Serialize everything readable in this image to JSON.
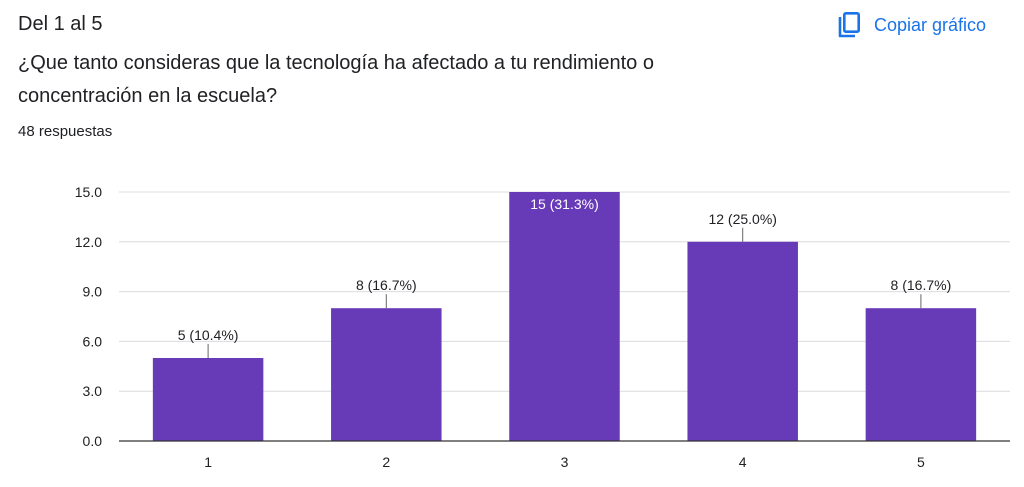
{
  "header": {
    "section": "Del 1 al 5",
    "question": "¿Que tanto consideras que la tecnología ha afectado a tu rendimiento o concentración en la escuela?",
    "responses": "48 respuestas",
    "copy_label": "Copiar gráfico",
    "copy_icon": "copy-icon"
  },
  "colors": {
    "bar": "#673ab7",
    "accent": "#1a73e8",
    "grid": "#dadce0",
    "axis": "#333333",
    "text": "#202124"
  },
  "chart_data": {
    "type": "bar",
    "categories": [
      "1",
      "2",
      "3",
      "4",
      "5"
    ],
    "values": [
      5,
      8,
      15,
      12,
      8
    ],
    "data_labels": [
      "5 (10.4%)",
      "8 (16.7%)",
      "15 (31.3%)",
      "12 (25.0%)",
      "8 (16.7%)"
    ],
    "yticks": [
      "0.0",
      "3.0",
      "6.0",
      "9.0",
      "12.0",
      "15.0"
    ],
    "ylim": [
      0,
      15
    ],
    "grid": true,
    "legend": "none",
    "title": "",
    "xlabel": "",
    "ylabel": ""
  }
}
